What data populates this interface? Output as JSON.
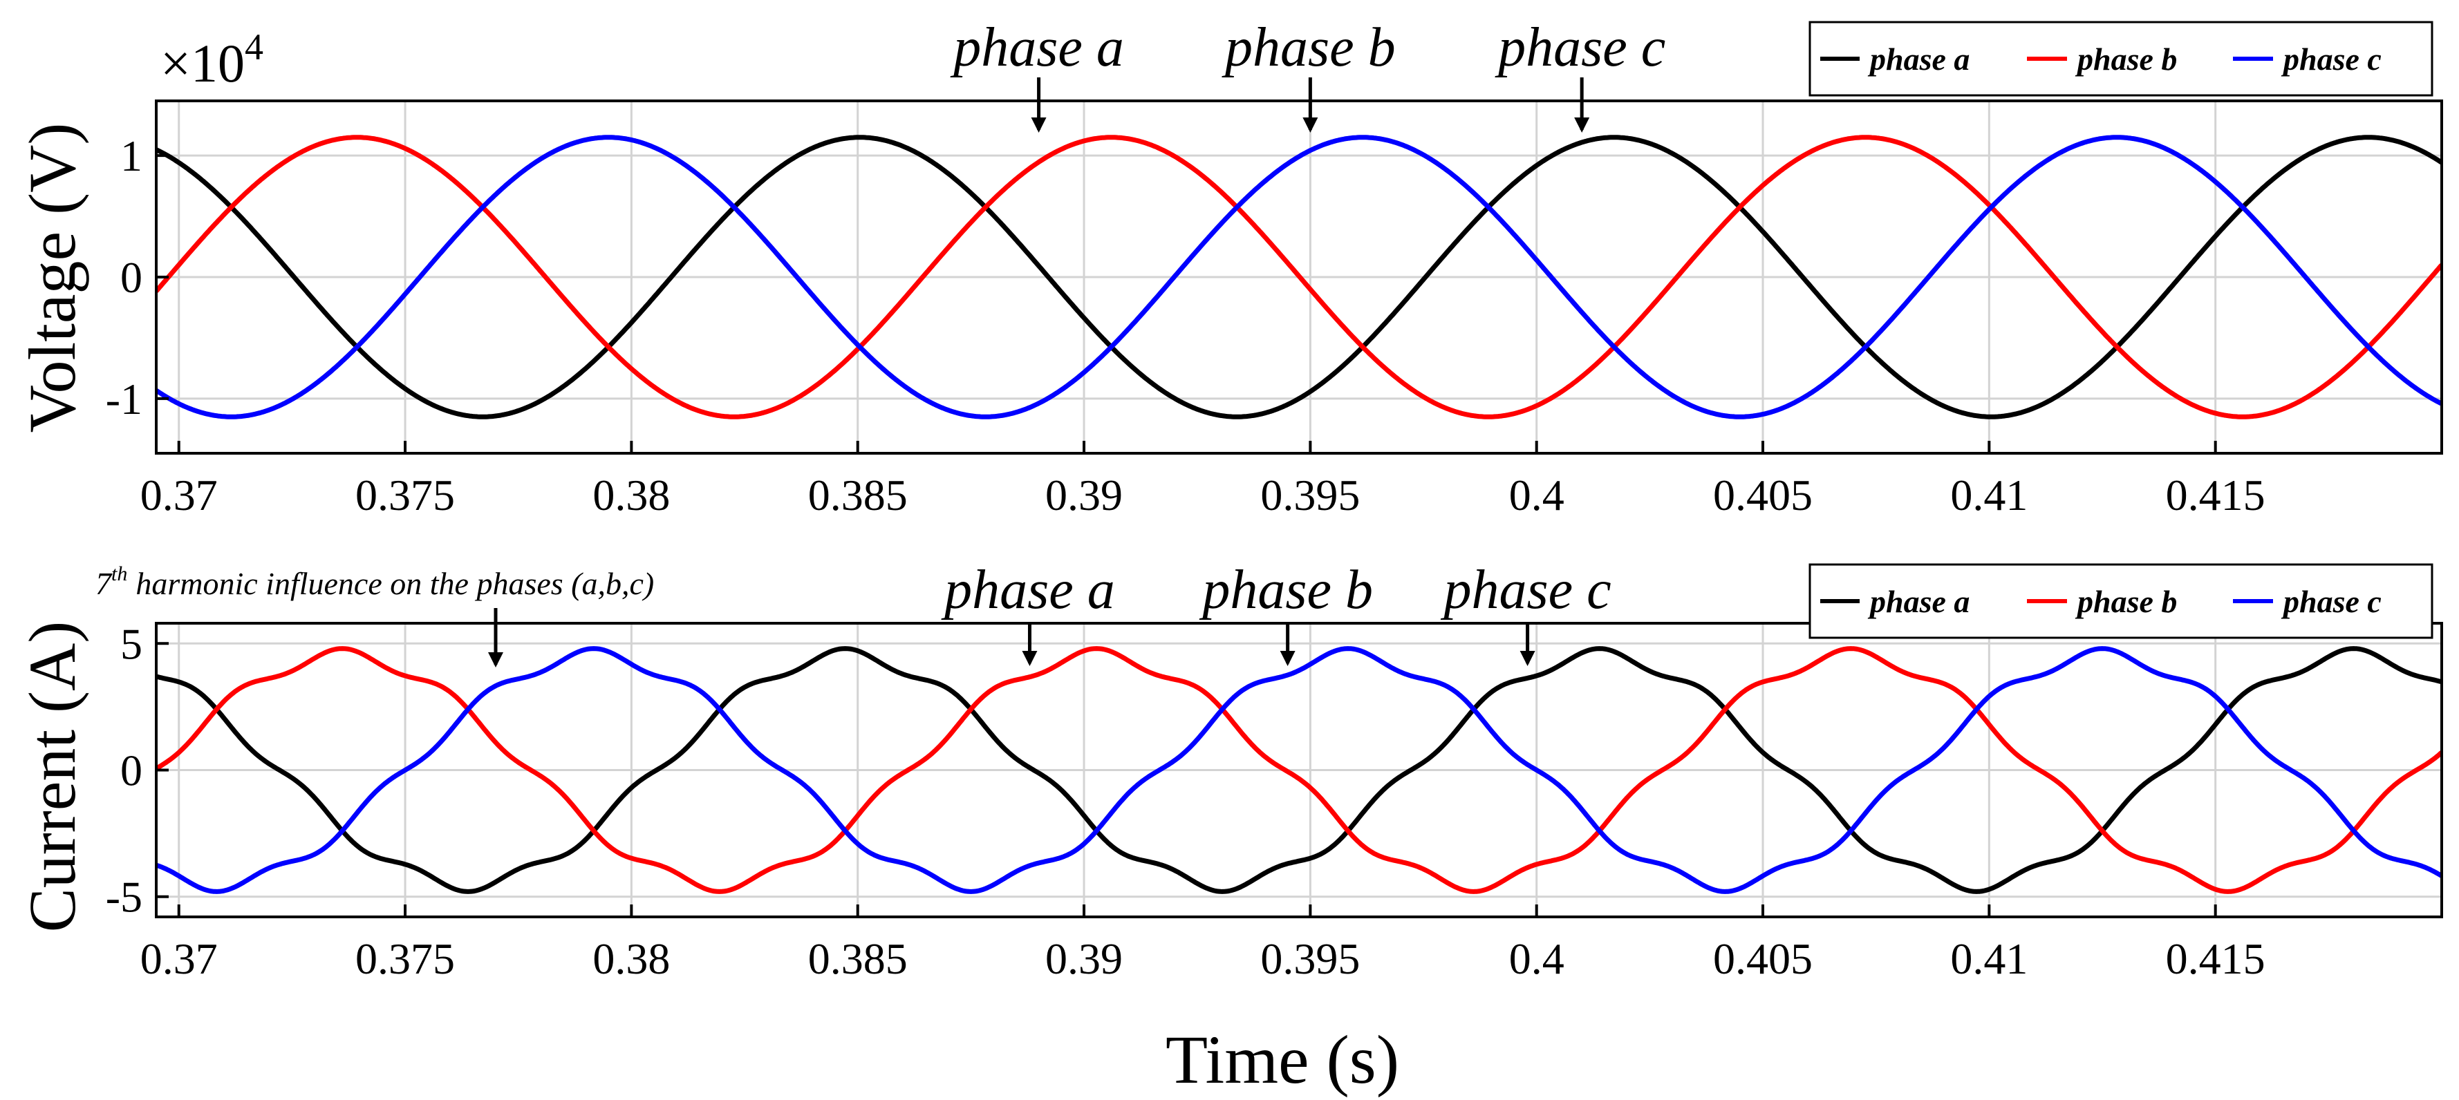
{
  "figure": {
    "colors": {
      "phase_a": "#000000",
      "phase_b": "#ff0000",
      "phase_c": "#0000ff"
    }
  },
  "chart_data": [
    {
      "type": "line",
      "id": "voltage",
      "title": "",
      "xlabel": "",
      "ylabel": "Voltage (V)",
      "exponent_label": "×10",
      "exponent_sup": "4",
      "xlim": [
        0.3695,
        0.42
      ],
      "ylim": [
        -1.45,
        1.45
      ],
      "x_ticks": [
        0.37,
        0.375,
        0.38,
        0.385,
        0.39,
        0.395,
        0.4,
        0.405,
        0.41,
        0.415
      ],
      "x_tick_labels": [
        "0.37",
        "0.375",
        "0.38",
        "0.385",
        "0.39",
        "0.395",
        "0.4",
        "0.405",
        "0.41",
        "0.415"
      ],
      "y_ticks": [
        -1,
        0,
        1
      ],
      "y_tick_labels": [
        "-1",
        "0",
        "1"
      ],
      "grid": true,
      "legend_position": "top-right",
      "frequency_hz": 60,
      "harmonic_order": 0,
      "harmonic_ratio": 0,
      "series": [
        {
          "name": "phase a",
          "color": "#000000",
          "amplitude": 1.15,
          "phase_deg": 53
        },
        {
          "name": "phase b",
          "color": "#ff0000",
          "amplitude": 1.15,
          "phase_deg": -67
        },
        {
          "name": "phase c",
          "color": "#0000ff",
          "amplitude": 1.15,
          "phase_deg": 173
        }
      ],
      "annotations": [
        {
          "text": "phase a",
          "x": 0.389
        },
        {
          "text": "phase b",
          "x": 0.395
        },
        {
          "text": "phase c",
          "x": 0.401
        }
      ]
    },
    {
      "type": "line",
      "id": "current",
      "title": "",
      "xlabel": "Time (s)",
      "ylabel": "Current (A)",
      "xlim": [
        0.3695,
        0.42
      ],
      "ylim": [
        -5.8,
        5.8
      ],
      "x_ticks": [
        0.37,
        0.375,
        0.38,
        0.385,
        0.39,
        0.395,
        0.4,
        0.405,
        0.41,
        0.415
      ],
      "x_tick_labels": [
        "0.37",
        "0.375",
        "0.38",
        "0.385",
        "0.39",
        "0.395",
        "0.4",
        "0.405",
        "0.41",
        "0.415"
      ],
      "y_ticks": [
        -5,
        0,
        5
      ],
      "y_tick_labels": [
        "-5",
        "0",
        "5"
      ],
      "grid": true,
      "legend_position": "top-right",
      "frequency_hz": 60,
      "harmonic_order": 7,
      "harmonic_ratio": 0.055,
      "series": [
        {
          "name": "phase a",
          "color": "#000000",
          "amplitude": 4.55,
          "phase_deg": 60
        },
        {
          "name": "phase b",
          "color": "#ff0000",
          "amplitude": 4.55,
          "phase_deg": -60
        },
        {
          "name": "phase c",
          "color": "#0000ff",
          "amplitude": 4.55,
          "phase_deg": 180
        }
      ],
      "annotations": [
        {
          "text": "phase a",
          "x": 0.3888
        },
        {
          "text": "phase b",
          "x": 0.3945
        },
        {
          "text": "phase c",
          "x": 0.3998
        }
      ],
      "note": {
        "text": "harmonic influence on the phases (a,b,c)",
        "order": "7",
        "order_suffix": "th",
        "arrow_x": 0.377
      }
    }
  ]
}
